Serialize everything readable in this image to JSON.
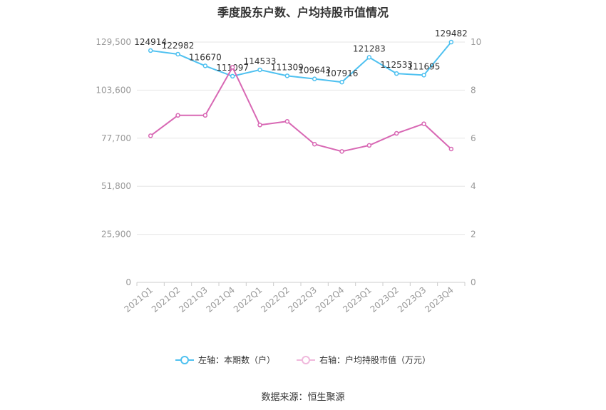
{
  "title": "季度股东户数、户均持股市值情况",
  "source": "数据来源：恒生聚源",
  "legend": {
    "left": "左轴：本期数（户）",
    "right": "右轴：户均持股市值（万元）"
  },
  "colors": {
    "left": "#4fc1f0",
    "right": "#d868b4",
    "grid": "#e6e6e6",
    "axis": "#999999"
  },
  "chart_data": {
    "type": "line",
    "categories": [
      "2021Q1",
      "2021Q2",
      "2021Q3",
      "2021Q4",
      "2022Q1",
      "2022Q2",
      "2022Q3",
      "2022Q4",
      "2023Q1",
      "2023Q2",
      "2023Q3",
      "2023Q4"
    ],
    "left_axis": {
      "ticks": [
        0,
        25900,
        51800,
        77700,
        103600,
        129500
      ],
      "tick_labels": [
        "0",
        "25,900",
        "51,800",
        "77,700",
        "103,600",
        "129,500"
      ],
      "ylim": [
        0,
        129500
      ]
    },
    "right_axis": {
      "ticks": [
        0,
        2,
        4,
        6,
        8,
        10
      ],
      "tick_labels": [
        "0",
        "2",
        "4",
        "6",
        "8",
        "10"
      ],
      "ylim": [
        0,
        10
      ]
    },
    "series": [
      {
        "name": "左轴：本期数（户）",
        "axis": "left",
        "values": [
          124914,
          122982,
          116670,
          111097,
          114533,
          111309,
          109643,
          107916,
          121283,
          112533,
          111695,
          129482
        ],
        "labels": [
          "124914",
          "122982",
          "116670",
          "111097",
          "114533",
          "111309",
          "109643",
          "107916",
          "121283",
          "112533",
          "111695",
          "129482"
        ]
      },
      {
        "name": "右轴：户均持股市值（万元）",
        "axis": "right",
        "values": [
          6.1,
          6.95,
          6.95,
          8.95,
          6.55,
          6.7,
          5.75,
          5.45,
          5.7,
          6.2,
          6.6,
          5.55
        ]
      }
    ],
    "grid": true,
    "legend_position": "bottom"
  }
}
